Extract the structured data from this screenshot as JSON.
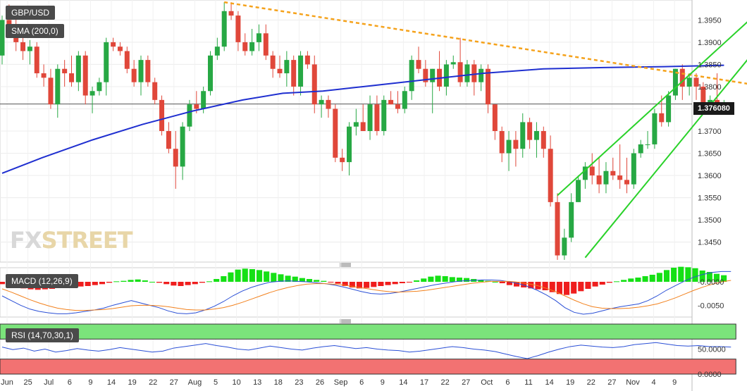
{
  "symbol": "GBP/USD",
  "watermark": {
    "fx": "FX",
    "rest": "STREET"
  },
  "current_price": "1.376080",
  "colors": {
    "up": "#27a844",
    "down": "#e0473a",
    "sma": "#1f2fd0",
    "trend": "#f5a21b",
    "channel": "#2ad22a",
    "macd": "#2a4fd6",
    "signal": "#f2811d",
    "rsi": "#2a4fd6",
    "rsi_upper": "#7be37b",
    "rsi_lower": "#f27272"
  },
  "chart_data": [
    {
      "type": "candlestick",
      "title": "GBP/USD",
      "price_label": "1.376080",
      "ylim": [
        1.3405,
        1.3995
      ],
      "yticks": [
        "1.3450",
        "1.3500",
        "1.3550",
        "1.3600",
        "1.3650",
        "1.3700",
        "1.3750",
        "1.3800",
        "1.3850",
        "1.3900",
        "1.3950"
      ],
      "xticks": [
        "Jun",
        "25",
        "Jul",
        "6",
        "9",
        "14",
        "19",
        "22",
        "27",
        "Aug",
        "5",
        "10",
        "13",
        "18",
        "23",
        "26",
        "Sep",
        "6",
        "9",
        "14",
        "17",
        "22",
        "27",
        "Oct",
        "6",
        "11",
        "14",
        "19",
        "22",
        "27",
        "Nov",
        "4",
        "9"
      ],
      "candles": [
        [
          1.387,
          1.396,
          1.385,
          1.395
        ],
        [
          1.395,
          1.3985,
          1.393,
          1.394
        ],
        [
          1.394,
          1.396,
          1.388,
          1.39
        ],
        [
          1.39,
          1.392,
          1.386,
          1.388
        ],
        [
          1.388,
          1.3905,
          1.385,
          1.389
        ],
        [
          1.389,
          1.39,
          1.382,
          1.383
        ],
        [
          1.383,
          1.385,
          1.38,
          1.382
        ],
        [
          1.382,
          1.384,
          1.375,
          1.376
        ],
        [
          1.376,
          1.385,
          1.373,
          1.384
        ],
        [
          1.384,
          1.386,
          1.38,
          1.383
        ],
        [
          1.383,
          1.387,
          1.38,
          1.381
        ],
        [
          1.381,
          1.388,
          1.379,
          1.387
        ],
        [
          1.387,
          1.388,
          1.376,
          1.378
        ],
        [
          1.378,
          1.38,
          1.374,
          1.379
        ],
        [
          1.379,
          1.382,
          1.378,
          1.381
        ],
        [
          1.381,
          1.391,
          1.378,
          1.39
        ],
        [
          1.39,
          1.391,
          1.388,
          1.389
        ],
        [
          1.389,
          1.39,
          1.387,
          1.388
        ],
        [
          1.388,
          1.389,
          1.383,
          1.384
        ],
        [
          1.384,
          1.386,
          1.38,
          1.381
        ],
        [
          1.381,
          1.387,
          1.378,
          1.386
        ],
        [
          1.386,
          1.387,
          1.38,
          1.381
        ],
        [
          1.381,
          1.382,
          1.376,
          1.377
        ],
        [
          1.377,
          1.378,
          1.369,
          1.37
        ],
        [
          1.37,
          1.372,
          1.365,
          1.366
        ],
        [
          1.366,
          1.37,
          1.357,
          1.362
        ],
        [
          1.362,
          1.372,
          1.359,
          1.371
        ],
        [
          1.371,
          1.377,
          1.37,
          1.376
        ],
        [
          1.376,
          1.379,
          1.374,
          1.375
        ],
        [
          1.375,
          1.38,
          1.374,
          1.379
        ],
        [
          1.379,
          1.388,
          1.378,
          1.387
        ],
        [
          1.387,
          1.391,
          1.386,
          1.389
        ],
        [
          1.389,
          1.399,
          1.388,
          1.397
        ],
        [
          1.397,
          1.399,
          1.395,
          1.396
        ],
        [
          1.396,
          1.397,
          1.388,
          1.39
        ],
        [
          1.39,
          1.392,
          1.387,
          1.388
        ],
        [
          1.388,
          1.393,
          1.387,
          1.39
        ],
        [
          1.39,
          1.394,
          1.388,
          1.392
        ],
        [
          1.392,
          1.394,
          1.386,
          1.387
        ],
        [
          1.387,
          1.388,
          1.382,
          1.384
        ],
        [
          1.384,
          1.387,
          1.382,
          1.383
        ],
        [
          1.383,
          1.388,
          1.38,
          1.386
        ],
        [
          1.386,
          1.387,
          1.378,
          1.38
        ],
        [
          1.38,
          1.388,
          1.378,
          1.387
        ],
        [
          1.387,
          1.388,
          1.384,
          1.385
        ],
        [
          1.385,
          1.387,
          1.374,
          1.376
        ],
        [
          1.376,
          1.378,
          1.373,
          1.377
        ],
        [
          1.377,
          1.378,
          1.373,
          1.375
        ],
        [
          1.375,
          1.376,
          1.363,
          1.364
        ],
        [
          1.364,
          1.366,
          1.361,
          1.363
        ],
        [
          1.363,
          1.372,
          1.36,
          1.371
        ],
        [
          1.371,
          1.375,
          1.369,
          1.372
        ],
        [
          1.372,
          1.376,
          1.37,
          1.37
        ],
        [
          1.37,
          1.378,
          1.368,
          1.376
        ],
        [
          1.376,
          1.378,
          1.369,
          1.37
        ],
        [
          1.37,
          1.378,
          1.369,
          1.377
        ],
        [
          1.377,
          1.379,
          1.376,
          1.376
        ],
        [
          1.376,
          1.379,
          1.374,
          1.375
        ],
        [
          1.375,
          1.38,
          1.374,
          1.379
        ],
        [
          1.379,
          1.387,
          1.377,
          1.386
        ],
        [
          1.386,
          1.389,
          1.383,
          1.384
        ],
        [
          1.384,
          1.386,
          1.38,
          1.381
        ],
        [
          1.381,
          1.384,
          1.374,
          1.384
        ],
        [
          1.384,
          1.388,
          1.379,
          1.38
        ],
        [
          1.38,
          1.386,
          1.378,
          1.385
        ],
        [
          1.385,
          1.387,
          1.384,
          1.3855
        ],
        [
          1.3855,
          1.391,
          1.38,
          1.381
        ],
        [
          1.381,
          1.386,
          1.38,
          1.385
        ],
        [
          1.385,
          1.386,
          1.378,
          1.381
        ],
        [
          1.381,
          1.385,
          1.379,
          1.384
        ],
        [
          1.384,
          1.385,
          1.374,
          1.376
        ],
        [
          1.376,
          1.376,
          1.368,
          1.37
        ],
        [
          1.37,
          1.371,
          1.363,
          1.365
        ],
        [
          1.365,
          1.37,
          1.361,
          1.368
        ],
        [
          1.368,
          1.37,
          1.362,
          1.366
        ],
        [
          1.366,
          1.374,
          1.364,
          1.372
        ],
        [
          1.372,
          1.373,
          1.366,
          1.368
        ],
        [
          1.368,
          1.372,
          1.364,
          1.37
        ],
        [
          1.37,
          1.371,
          1.364,
          1.366
        ],
        [
          1.366,
          1.369,
          1.353,
          1.354
        ],
        [
          1.354,
          1.356,
          1.341,
          1.342
        ],
        [
          1.342,
          1.348,
          1.341,
          1.346
        ],
        [
          1.346,
          1.356,
          1.345,
          1.354
        ],
        [
          1.354,
          1.36,
          1.354,
          1.359
        ],
        [
          1.359,
          1.363,
          1.357,
          1.362
        ],
        [
          1.362,
          1.365,
          1.358,
          1.36
        ],
        [
          1.36,
          1.364,
          1.356,
          1.358
        ],
        [
          1.358,
          1.363,
          1.356,
          1.361
        ],
        [
          1.361,
          1.364,
          1.359,
          1.36
        ],
        [
          1.36,
          1.367,
          1.357,
          1.359
        ],
        [
          1.359,
          1.364,
          1.356,
          1.358
        ],
        [
          1.358,
          1.366,
          1.357,
          1.365
        ],
        [
          1.365,
          1.368,
          1.364,
          1.367
        ],
        [
          1.367,
          1.37,
          1.366,
          1.367
        ],
        [
          1.367,
          1.375,
          1.366,
          1.374
        ],
        [
          1.374,
          1.378,
          1.371,
          1.372
        ],
        [
          1.372,
          1.379,
          1.371,
          1.378
        ],
        [
          1.378,
          1.384,
          1.377,
          1.384
        ],
        [
          1.384,
          1.385,
          1.377,
          1.38
        ],
        [
          1.38,
          1.383,
          1.378,
          1.382
        ],
        [
          1.382,
          1.383,
          1.377,
          1.38
        ],
        [
          1.38,
          1.381,
          1.375,
          1.376
        ],
        [
          1.376,
          1.378,
          1.374,
          1.377
        ],
        [
          1.377,
          1.383,
          1.375,
          1.376
        ],
        [
          1.376,
          1.377,
          1.375,
          1.3761
        ]
      ],
      "sma_label": "SMA (200,0)",
      "sma_200": [
        [
          0,
          1.3605
        ],
        [
          20,
          1.364
        ],
        [
          45,
          1.368
        ],
        [
          70,
          1.3715
        ],
        [
          95,
          1.3745
        ],
        [
          120,
          1.377
        ],
        [
          140,
          1.3785
        ],
        [
          160,
          1.379
        ],
        [
          180,
          1.38
        ],
        [
          210,
          1.3815
        ],
        [
          240,
          1.383
        ],
        [
          270,
          1.384
        ],
        [
          300,
          1.3843
        ],
        [
          330,
          1.3845
        ],
        [
          360,
          1.3848
        ]
      ],
      "trendline": {
        "color": "orange-dashed",
        "from": [
          32,
          1.399
        ],
        "to": [
          108,
          1.3805
        ]
      },
      "channel": {
        "color": "green",
        "upper": [
          [
            80,
            1.3555
          ],
          [
            108,
            1.3995
          ]
        ],
        "lower": [
          [
            84,
            1.3415
          ],
          [
            108,
            1.3925
          ]
        ]
      }
    },
    {
      "type": "line",
      "title": "MACD (12,26,9)",
      "yticks": [
        "-0.0000",
        "-0.0050"
      ],
      "ylim": [
        -0.0075,
        0.003
      ],
      "histogram": [
        -0.0005,
        -0.0009,
        -0.0012,
        -0.0014,
        -0.0016,
        -0.0017,
        -0.0016,
        -0.0015,
        -0.0013,
        -0.0012,
        -0.0011,
        -0.001,
        -0.0009,
        -0.0007,
        -0.0005,
        -0.0002,
        0.0001,
        0.0002,
        0.0004,
        0.0005,
        0.0003,
        0.0,
        -0.0002,
        -0.0005,
        -0.0008,
        -0.0009,
        -0.0007,
        -0.0005,
        -0.0002,
        0.0001,
        0.0006,
        0.0012,
        0.002,
        0.0026,
        0.0028,
        0.0027,
        0.0025,
        0.0022,
        0.0019,
        0.0016,
        0.0013,
        0.0011,
        0.0008,
        0.0006,
        0.0004,
        0.0002,
        -0.0001,
        -0.0004,
        -0.0009,
        -0.0012,
        -0.0014,
        -0.0013,
        -0.0011,
        -0.0009,
        -0.0007,
        -0.0005,
        -0.0003,
        -0.0001,
        0.0003,
        0.0007,
        0.0011,
        0.0013,
        0.0012,
        0.001,
        0.0009,
        0.0008,
        0.0006,
        0.0004,
        0.0002,
        0.0,
        -0.0003,
        -0.0007,
        -0.001,
        -0.0012,
        -0.0014,
        -0.0016,
        -0.0018,
        -0.0022,
        -0.0026,
        -0.0028,
        -0.0025,
        -0.002,
        -0.0015,
        -0.001,
        -0.0006,
        -0.0002,
        0.0001,
        0.0004,
        0.0007,
        0.0009,
        0.0012,
        0.0015,
        0.0019,
        0.0025,
        0.003,
        0.0032,
        0.0031,
        0.0029,
        0.0024,
        0.0021,
        0.0017,
        0.0014
      ],
      "macd": [
        -0.003,
        -0.004,
        -0.005,
        -0.0058,
        -0.0063,
        -0.0066,
        -0.0068,
        -0.0068,
        -0.0066,
        -0.0063,
        -0.006,
        -0.0056,
        -0.005,
        -0.0045,
        -0.004,
        -0.0045,
        -0.005,
        -0.0055,
        -0.0062,
        -0.0067,
        -0.0068,
        -0.0066,
        -0.006,
        -0.0052,
        -0.0042,
        -0.003,
        -0.002,
        -0.0012,
        -0.0006,
        -0.0001,
        0.0001,
        0.0002,
        0.0001,
        0.0,
        -0.0002,
        -0.0004,
        -0.0007,
        -0.0011,
        -0.0016,
        -0.0021,
        -0.0025,
        -0.0026,
        -0.0025,
        -0.0022,
        -0.0018,
        -0.0014,
        -0.001,
        -0.0006,
        -0.0003,
        0.0,
        0.0002,
        0.0003,
        0.0004,
        0.0004,
        0.0003,
        0.0,
        -0.0004,
        -0.001,
        -0.0018,
        -0.0028,
        -0.004,
        -0.0055,
        -0.0065,
        -0.0069,
        -0.0067,
        -0.0062,
        -0.0057,
        -0.0053,
        -0.005,
        -0.0047,
        -0.004,
        -0.003,
        -0.0018,
        -0.0008,
        0.0002,
        0.001,
        0.0016,
        0.002,
        0.0022,
        0.0022
      ],
      "signal": [
        -0.0015,
        -0.0022,
        -0.003,
        -0.0038,
        -0.0045,
        -0.0051,
        -0.0056,
        -0.0059,
        -0.0061,
        -0.0061,
        -0.006,
        -0.0059,
        -0.0057,
        -0.0054,
        -0.0051,
        -0.005,
        -0.005,
        -0.0051,
        -0.0053,
        -0.0056,
        -0.0059,
        -0.006,
        -0.006,
        -0.0058,
        -0.0055,
        -0.005,
        -0.0044,
        -0.0037,
        -0.003,
        -0.0023,
        -0.0017,
        -0.0012,
        -0.0008,
        -0.0005,
        -0.0004,
        -0.0004,
        -0.0005,
        -0.0007,
        -0.001,
        -0.0013,
        -0.0016,
        -0.0019,
        -0.0021,
        -0.0022,
        -0.0021,
        -0.002,
        -0.0018,
        -0.0015,
        -0.0012,
        -0.0009,
        -0.0006,
        -0.0003,
        -0.0001,
        0.0001,
        0.0001,
        0.0001,
        -0.0001,
        -0.0004,
        -0.0008,
        -0.0014,
        -0.0021,
        -0.003,
        -0.0039,
        -0.0047,
        -0.0053,
        -0.0056,
        -0.0057,
        -0.0057,
        -0.0056,
        -0.0054,
        -0.0051,
        -0.0047,
        -0.0041,
        -0.0034,
        -0.0026,
        -0.0018,
        -0.0011,
        -0.0005,
        0.0,
        0.0003
      ]
    },
    {
      "type": "line",
      "title": "RSI (14,70,30,1)",
      "yticks": [
        "50.0000",
        "0.0000"
      ],
      "ylim": [
        0,
        100
      ],
      "bands": {
        "upper": 70,
        "lower": 30
      },
      "rsi": [
        54,
        49,
        52,
        46,
        50,
        44,
        47,
        51,
        48,
        46,
        49,
        53,
        50,
        47,
        44,
        46,
        52,
        55,
        58,
        61,
        57,
        54,
        50,
        48,
        52,
        56,
        53,
        50,
        48,
        52,
        55,
        57,
        54,
        51,
        53,
        50,
        48,
        47,
        44,
        46,
        49,
        52,
        55,
        53,
        50,
        48,
        45,
        40,
        35,
        31,
        37,
        44,
        50,
        55,
        58,
        56,
        54,
        53,
        55,
        59,
        61,
        63,
        60,
        57,
        56,
        57,
        55,
        55,
        54
      ]
    }
  ]
}
